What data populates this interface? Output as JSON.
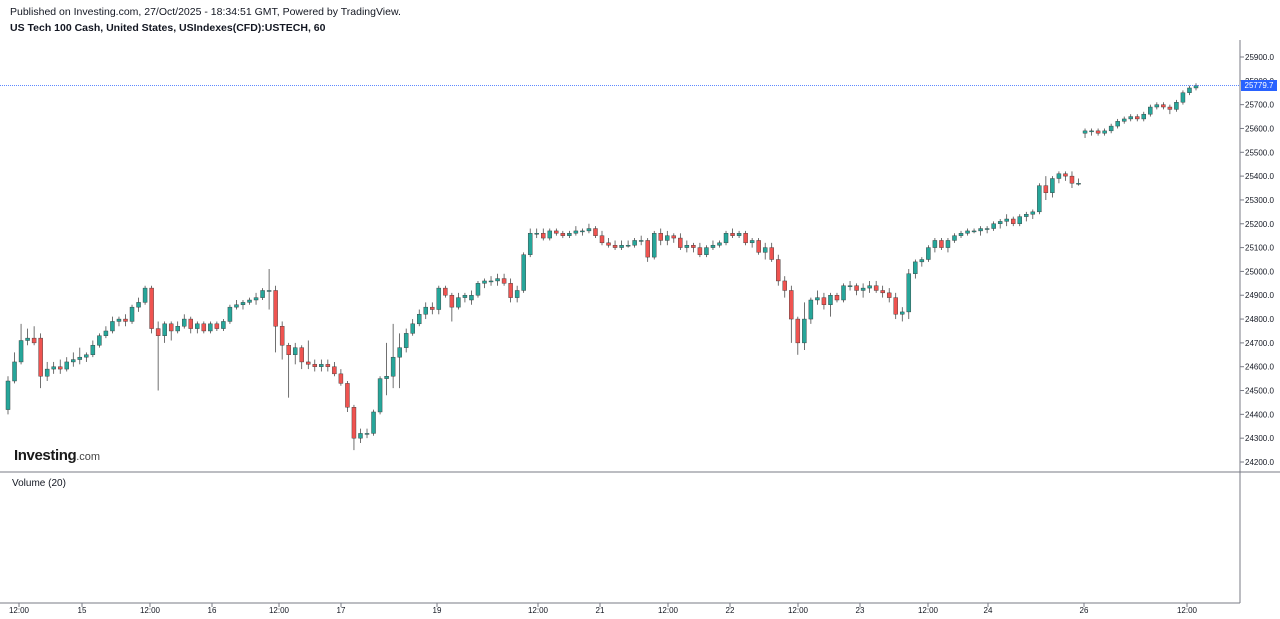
{
  "header": {
    "published_line": "Published on Investing.com, 27/Oct/2025 - 18:34:51 GMT, Powered by TradingView.",
    "symbol_line": "US Tech 100 Cash, United States, USIndexes(CFD):USTECH, 60"
  },
  "logo": {
    "brand": "Investing",
    "suffix": ".com"
  },
  "volume_pane": {
    "label": "Volume (20)"
  },
  "last_price": "25779.7",
  "colors": {
    "up": "#26a69a",
    "down": "#ef5350",
    "last_price": "#2962ff",
    "axis": "#787b86",
    "wick": "#333333"
  },
  "chart_data": {
    "type": "candlestick",
    "interval": "60",
    "y_axis": {
      "range": [
        24150,
        25960
      ],
      "ticks": [
        "25900.0",
        "25800.0",
        "25700.0",
        "25600.0",
        "25500.0",
        "25400.0",
        "25300.0",
        "25200.0",
        "25100.0",
        "25000.0",
        "24900.0",
        "24800.0",
        "24700.0",
        "24600.0",
        "24500.0",
        "24400.0",
        "24300.0",
        "24200.0"
      ]
    },
    "x_axis": {
      "ticks": [
        "12:00",
        "15",
        "12:00",
        "16",
        "12:00",
        "17",
        "19",
        "12:00",
        "21",
        "12:00",
        "22",
        "12:00",
        "23",
        "12:00",
        "24",
        "26",
        "12:00"
      ]
    },
    "candles": [
      {
        "o": 24420,
        "h": 24560,
        "l": 24400,
        "c": 24540
      },
      {
        "o": 24540,
        "h": 24660,
        "l": 24530,
        "c": 24620
      },
      {
        "o": 24620,
        "h": 24780,
        "l": 24610,
        "c": 24710
      },
      {
        "o": 24710,
        "h": 24760,
        "l": 24690,
        "c": 24720
      },
      {
        "o": 24720,
        "h": 24770,
        "l": 24690,
        "c": 24700
      },
      {
        "o": 24720,
        "h": 24740,
        "l": 24510,
        "c": 24560
      },
      {
        "o": 24560,
        "h": 24620,
        "l": 24540,
        "c": 24590
      },
      {
        "o": 24590,
        "h": 24620,
        "l": 24570,
        "c": 24600
      },
      {
        "o": 24600,
        "h": 24630,
        "l": 24570,
        "c": 24590
      },
      {
        "o": 24590,
        "h": 24640,
        "l": 24580,
        "c": 24620
      },
      {
        "o": 24620,
        "h": 24660,
        "l": 24600,
        "c": 24630
      },
      {
        "o": 24630,
        "h": 24680,
        "l": 24610,
        "c": 24640
      },
      {
        "o": 24640,
        "h": 24660,
        "l": 24620,
        "c": 24650
      },
      {
        "o": 24650,
        "h": 24710,
        "l": 24640,
        "c": 24690
      },
      {
        "o": 24690,
        "h": 24740,
        "l": 24680,
        "c": 24730
      },
      {
        "o": 24730,
        "h": 24770,
        "l": 24720,
        "c": 24750
      },
      {
        "o": 24750,
        "h": 24810,
        "l": 24740,
        "c": 24790
      },
      {
        "o": 24790,
        "h": 24810,
        "l": 24770,
        "c": 24800
      },
      {
        "o": 24800,
        "h": 24820,
        "l": 24770,
        "c": 24790
      },
      {
        "o": 24790,
        "h": 24860,
        "l": 24780,
        "c": 24850
      },
      {
        "o": 24850,
        "h": 24890,
        "l": 24830,
        "c": 24870
      },
      {
        "o": 24870,
        "h": 24940,
        "l": 24860,
        "c": 24930
      },
      {
        "o": 24930,
        "h": 24940,
        "l": 24740,
        "c": 24760
      },
      {
        "o": 24760,
        "h": 24790,
        "l": 24500,
        "c": 24730
      },
      {
        "o": 24730,
        "h": 24790,
        "l": 24700,
        "c": 24780
      },
      {
        "o": 24780,
        "h": 24790,
        "l": 24710,
        "c": 24750
      },
      {
        "o": 24750,
        "h": 24790,
        "l": 24740,
        "c": 24770
      },
      {
        "o": 24770,
        "h": 24820,
        "l": 24760,
        "c": 24800
      },
      {
        "o": 24800,
        "h": 24810,
        "l": 24740,
        "c": 24760
      },
      {
        "o": 24760,
        "h": 24790,
        "l": 24740,
        "c": 24780
      },
      {
        "o": 24780,
        "h": 24790,
        "l": 24740,
        "c": 24750
      },
      {
        "o": 24750,
        "h": 24790,
        "l": 24740,
        "c": 24780
      },
      {
        "o": 24780,
        "h": 24790,
        "l": 24750,
        "c": 24760
      },
      {
        "o": 24760,
        "h": 24800,
        "l": 24750,
        "c": 24790
      },
      {
        "o": 24790,
        "h": 24860,
        "l": 24780,
        "c": 24850
      },
      {
        "o": 24850,
        "h": 24880,
        "l": 24840,
        "c": 24860
      },
      {
        "o": 24860,
        "h": 24880,
        "l": 24840,
        "c": 24870
      },
      {
        "o": 24870,
        "h": 24890,
        "l": 24860,
        "c": 24880
      },
      {
        "o": 24880,
        "h": 24910,
        "l": 24860,
        "c": 24890
      },
      {
        "o": 24890,
        "h": 24930,
        "l": 24880,
        "c": 24920
      },
      {
        "o": 24920,
        "h": 25010,
        "l": 24840,
        "c": 24920
      },
      {
        "o": 24920,
        "h": 24940,
        "l": 24660,
        "c": 24770
      },
      {
        "o": 24770,
        "h": 24790,
        "l": 24630,
        "c": 24690
      },
      {
        "o": 24690,
        "h": 24700,
        "l": 24470,
        "c": 24650
      },
      {
        "o": 24650,
        "h": 24700,
        "l": 24610,
        "c": 24680
      },
      {
        "o": 24680,
        "h": 24690,
        "l": 24590,
        "c": 24620
      },
      {
        "o": 24620,
        "h": 24710,
        "l": 24590,
        "c": 24610
      },
      {
        "o": 24610,
        "h": 24630,
        "l": 24580,
        "c": 24600
      },
      {
        "o": 24600,
        "h": 24630,
        "l": 24580,
        "c": 24610
      },
      {
        "o": 24610,
        "h": 24630,
        "l": 24580,
        "c": 24600
      },
      {
        "o": 24600,
        "h": 24620,
        "l": 24560,
        "c": 24570
      },
      {
        "o": 24570,
        "h": 24590,
        "l": 24520,
        "c": 24530
      },
      {
        "o": 24530,
        "h": 24540,
        "l": 24410,
        "c": 24430
      },
      {
        "o": 24430,
        "h": 24440,
        "l": 24250,
        "c": 24300
      },
      {
        "o": 24300,
        "h": 24340,
        "l": 24280,
        "c": 24320
      },
      {
        "o": 24320,
        "h": 24340,
        "l": 24300,
        "c": 24320
      },
      {
        "o": 24320,
        "h": 24420,
        "l": 24310,
        "c": 24410
      },
      {
        "o": 24410,
        "h": 24560,
        "l": 24400,
        "c": 24550
      },
      {
        "o": 24550,
        "h": 24700,
        "l": 24480,
        "c": 24560
      },
      {
        "o": 24560,
        "h": 24780,
        "l": 24510,
        "c": 24640
      },
      {
        "o": 24640,
        "h": 24740,
        "l": 24510,
        "c": 24680
      },
      {
        "o": 24680,
        "h": 24760,
        "l": 24660,
        "c": 24740
      },
      {
        "o": 24740,
        "h": 24800,
        "l": 24730,
        "c": 24780
      },
      {
        "o": 24780,
        "h": 24840,
        "l": 24770,
        "c": 24820
      },
      {
        "o": 24820,
        "h": 24870,
        "l": 24800,
        "c": 24850
      },
      {
        "o": 24850,
        "h": 24870,
        "l": 24820,
        "c": 24840
      },
      {
        "o": 24840,
        "h": 24940,
        "l": 24820,
        "c": 24930
      },
      {
        "o": 24930,
        "h": 24940,
        "l": 24890,
        "c": 24900
      },
      {
        "o": 24900,
        "h": 24910,
        "l": 24790,
        "c": 24850
      },
      {
        "o": 24850,
        "h": 24910,
        "l": 24840,
        "c": 24890
      },
      {
        "o": 24890,
        "h": 24910,
        "l": 24870,
        "c": 24900
      },
      {
        "o": 24880,
        "h": 24920,
        "l": 24860,
        "c": 24900
      },
      {
        "o": 24900,
        "h": 24960,
        "l": 24890,
        "c": 24950
      },
      {
        "o": 24950,
        "h": 24970,
        "l": 24930,
        "c": 24960
      },
      {
        "o": 24960,
        "h": 24980,
        "l": 24940,
        "c": 24960
      },
      {
        "o": 24960,
        "h": 24990,
        "l": 24940,
        "c": 24970
      },
      {
        "o": 24970,
        "h": 24990,
        "l": 24940,
        "c": 24950
      },
      {
        "o": 24950,
        "h": 24970,
        "l": 24870,
        "c": 24890
      },
      {
        "o": 24890,
        "h": 24940,
        "l": 24870,
        "c": 24920
      },
      {
        "o": 24920,
        "h": 25080,
        "l": 24910,
        "c": 25070
      },
      {
        "o": 25070,
        "h": 25180,
        "l": 25060,
        "c": 25160
      },
      {
        "o": 25160,
        "h": 25180,
        "l": 25140,
        "c": 25160
      },
      {
        "o": 25160,
        "h": 25180,
        "l": 25130,
        "c": 25140
      },
      {
        "o": 25140,
        "h": 25180,
        "l": 25130,
        "c": 25170
      },
      {
        "o": 25170,
        "h": 25180,
        "l": 25150,
        "c": 25160
      },
      {
        "o": 25160,
        "h": 25170,
        "l": 25140,
        "c": 25150
      },
      {
        "o": 25150,
        "h": 25170,
        "l": 25140,
        "c": 25160
      },
      {
        "o": 25160,
        "h": 25190,
        "l": 25150,
        "c": 25170
      },
      {
        "o": 25170,
        "h": 25180,
        "l": 25150,
        "c": 25170
      },
      {
        "o": 25170,
        "h": 25200,
        "l": 25160,
        "c": 25180
      },
      {
        "o": 25180,
        "h": 25190,
        "l": 25140,
        "c": 25150
      },
      {
        "o": 25150,
        "h": 25170,
        "l": 25110,
        "c": 25120
      },
      {
        "o": 25120,
        "h": 25140,
        "l": 25100,
        "c": 25110
      },
      {
        "o": 25110,
        "h": 25130,
        "l": 25090,
        "c": 25100
      },
      {
        "o": 25100,
        "h": 25130,
        "l": 25090,
        "c": 25110
      },
      {
        "o": 25110,
        "h": 25130,
        "l": 25100,
        "c": 25110
      },
      {
        "o": 25110,
        "h": 25140,
        "l": 25100,
        "c": 25130
      },
      {
        "o": 25130,
        "h": 25150,
        "l": 25110,
        "c": 25130
      },
      {
        "o": 25130,
        "h": 25140,
        "l": 25040,
        "c": 25060
      },
      {
        "o": 25060,
        "h": 25170,
        "l": 25050,
        "c": 25160
      },
      {
        "o": 25160,
        "h": 25180,
        "l": 25110,
        "c": 25130
      },
      {
        "o": 25130,
        "h": 25170,
        "l": 25110,
        "c": 25150
      },
      {
        "o": 25150,
        "h": 25160,
        "l": 25120,
        "c": 25140
      },
      {
        "o": 25140,
        "h": 25160,
        "l": 25090,
        "c": 25100
      },
      {
        "o": 25100,
        "h": 25130,
        "l": 25080,
        "c": 25110
      },
      {
        "o": 25110,
        "h": 25120,
        "l": 25080,
        "c": 25100
      },
      {
        "o": 25100,
        "h": 25120,
        "l": 25060,
        "c": 25070
      },
      {
        "o": 25070,
        "h": 25110,
        "l": 25060,
        "c": 25100
      },
      {
        "o": 25100,
        "h": 25130,
        "l": 25090,
        "c": 25110
      },
      {
        "o": 25110,
        "h": 25130,
        "l": 25100,
        "c": 25120
      },
      {
        "o": 25120,
        "h": 25170,
        "l": 25110,
        "c": 25160
      },
      {
        "o": 25160,
        "h": 25180,
        "l": 25140,
        "c": 25150
      },
      {
        "o": 25150,
        "h": 25170,
        "l": 25140,
        "c": 25160
      },
      {
        "o": 25160,
        "h": 25170,
        "l": 25110,
        "c": 25120
      },
      {
        "o": 25120,
        "h": 25140,
        "l": 25100,
        "c": 25130
      },
      {
        "o": 25130,
        "h": 25140,
        "l": 25070,
        "c": 25080
      },
      {
        "o": 25080,
        "h": 25120,
        "l": 25050,
        "c": 25100
      },
      {
        "o": 25100,
        "h": 25120,
        "l": 25040,
        "c": 25050
      },
      {
        "o": 25050,
        "h": 25070,
        "l": 24940,
        "c": 24960
      },
      {
        "o": 24960,
        "h": 24980,
        "l": 24890,
        "c": 24920
      },
      {
        "o": 24920,
        "h": 24940,
        "l": 24700,
        "c": 24800
      },
      {
        "o": 24800,
        "h": 24810,
        "l": 24650,
        "c": 24700
      },
      {
        "o": 24700,
        "h": 24870,
        "l": 24670,
        "c": 24800
      },
      {
        "o": 24800,
        "h": 24890,
        "l": 24780,
        "c": 24880
      },
      {
        "o": 24880,
        "h": 24920,
        "l": 24860,
        "c": 24890
      },
      {
        "o": 24890,
        "h": 24910,
        "l": 24840,
        "c": 24860
      },
      {
        "o": 24860,
        "h": 24910,
        "l": 24810,
        "c": 24900
      },
      {
        "o": 24900,
        "h": 24910,
        "l": 24870,
        "c": 24880
      },
      {
        "o": 24880,
        "h": 24950,
        "l": 24870,
        "c": 24940
      },
      {
        "o": 24940,
        "h": 24960,
        "l": 24920,
        "c": 24940
      },
      {
        "o": 24940,
        "h": 24950,
        "l": 24900,
        "c": 24920
      },
      {
        "o": 24920,
        "h": 24950,
        "l": 24890,
        "c": 24930
      },
      {
        "o": 24930,
        "h": 24960,
        "l": 24910,
        "c": 24940
      },
      {
        "o": 24940,
        "h": 24960,
        "l": 24910,
        "c": 24920
      },
      {
        "o": 24920,
        "h": 24940,
        "l": 24890,
        "c": 24910
      },
      {
        "o": 24910,
        "h": 24930,
        "l": 24870,
        "c": 24890
      },
      {
        "o": 24890,
        "h": 24910,
        "l": 24800,
        "c": 24820
      },
      {
        "o": 24820,
        "h": 24850,
        "l": 24790,
        "c": 24830
      },
      {
        "o": 24830,
        "h": 25010,
        "l": 24800,
        "c": 24990
      },
      {
        "o": 24990,
        "h": 25050,
        "l": 24970,
        "c": 25040
      },
      {
        "o": 25040,
        "h": 25060,
        "l": 25020,
        "c": 25050
      },
      {
        "o": 25050,
        "h": 25110,
        "l": 25040,
        "c": 25100
      },
      {
        "o": 25100,
        "h": 25140,
        "l": 25080,
        "c": 25130
      },
      {
        "o": 25130,
        "h": 25140,
        "l": 25090,
        "c": 25100
      },
      {
        "o": 25100,
        "h": 25140,
        "l": 25080,
        "c": 25130
      },
      {
        "o": 25130,
        "h": 25160,
        "l": 25120,
        "c": 25150
      },
      {
        "o": 25150,
        "h": 25170,
        "l": 25140,
        "c": 25160
      },
      {
        "o": 25160,
        "h": 25180,
        "l": 25150,
        "c": 25170
      },
      {
        "o": 25170,
        "h": 25180,
        "l": 25160,
        "c": 25170
      },
      {
        "o": 25170,
        "h": 25190,
        "l": 25150,
        "c": 25180
      },
      {
        "o": 25180,
        "h": 25190,
        "l": 25160,
        "c": 25180
      },
      {
        "o": 25180,
        "h": 25210,
        "l": 25170,
        "c": 25200
      },
      {
        "o": 25200,
        "h": 25220,
        "l": 25180,
        "c": 25210
      },
      {
        "o": 25210,
        "h": 25240,
        "l": 25190,
        "c": 25220
      },
      {
        "o": 25220,
        "h": 25230,
        "l": 25190,
        "c": 25200
      },
      {
        "o": 25200,
        "h": 25240,
        "l": 25190,
        "c": 25230
      },
      {
        "o": 25230,
        "h": 25250,
        "l": 25210,
        "c": 25240
      },
      {
        "o": 25240,
        "h": 25260,
        "l": 25220,
        "c": 25250
      },
      {
        "o": 25250,
        "h": 25370,
        "l": 25240,
        "c": 25360
      },
      {
        "o": 25360,
        "h": 25400,
        "l": 25300,
        "c": 25330
      },
      {
        "o": 25330,
        "h": 25400,
        "l": 25310,
        "c": 25390
      },
      {
        "o": 25390,
        "h": 25420,
        "l": 25370,
        "c": 25410
      },
      {
        "o": 25410,
        "h": 25420,
        "l": 25380,
        "c": 25400
      },
      {
        "o": 25400,
        "h": 25420,
        "l": 25350,
        "c": 25370
      },
      {
        "o": 25370,
        "h": 25390,
        "l": 25360,
        "c": 25370
      },
      {
        "o": 25580,
        "h": 25600,
        "l": 25560,
        "c": 25590
      },
      {
        "o": 25590,
        "h": 25600,
        "l": 25570,
        "c": 25590
      },
      {
        "o": 25590,
        "h": 25600,
        "l": 25570,
        "c": 25580
      },
      {
        "o": 25580,
        "h": 25600,
        "l": 25570,
        "c": 25590
      },
      {
        "o": 25590,
        "h": 25620,
        "l": 25580,
        "c": 25610
      },
      {
        "o": 25610,
        "h": 25640,
        "l": 25600,
        "c": 25630
      },
      {
        "o": 25630,
        "h": 25650,
        "l": 25620,
        "c": 25640
      },
      {
        "o": 25640,
        "h": 25660,
        "l": 25630,
        "c": 25650
      },
      {
        "o": 25650,
        "h": 25660,
        "l": 25630,
        "c": 25640
      },
      {
        "o": 25640,
        "h": 25670,
        "l": 25630,
        "c": 25660
      },
      {
        "o": 25660,
        "h": 25700,
        "l": 25650,
        "c": 25690
      },
      {
        "o": 25690,
        "h": 25710,
        "l": 25680,
        "c": 25700
      },
      {
        "o": 25700,
        "h": 25710,
        "l": 25680,
        "c": 25690
      },
      {
        "o": 25690,
        "h": 25700,
        "l": 25660,
        "c": 25680
      },
      {
        "o": 25680,
        "h": 25720,
        "l": 25670,
        "c": 25710
      },
      {
        "o": 25710,
        "h": 25760,
        "l": 25700,
        "c": 25750
      },
      {
        "o": 25750,
        "h": 25780,
        "l": 25740,
        "c": 25770
      },
      {
        "o": 25770,
        "h": 25790,
        "l": 25760,
        "c": 25780
      }
    ]
  }
}
